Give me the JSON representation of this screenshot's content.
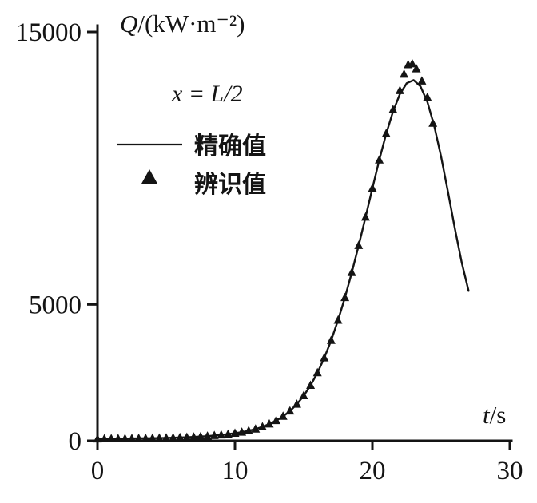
{
  "chart_data": {
    "type": "line",
    "title": {
      "symbol": "Q",
      "units": "/(kW·m⁻²)"
    },
    "xlabel": {
      "symbol": "t",
      "units": "/s"
    },
    "ylabel": "Q/(kW·m⁻²)",
    "annotation": "x = L/2",
    "xlim": [
      0,
      30
    ],
    "ylim": [
      0,
      15000
    ],
    "x_ticks": [
      0,
      10,
      20,
      30
    ],
    "y_ticks": [
      0,
      5000,
      15000
    ],
    "grid": false,
    "legend_position": "upper-left-inside",
    "ink_color": "#141414",
    "series": [
      {
        "name": "精确值",
        "type": "line",
        "points": [
          [
            0,
            70
          ],
          [
            1,
            75
          ],
          [
            2,
            80
          ],
          [
            3,
            88
          ],
          [
            4,
            95
          ],
          [
            5,
            105
          ],
          [
            6,
            120
          ],
          [
            7,
            140
          ],
          [
            8,
            170
          ],
          [
            9,
            215
          ],
          [
            10,
            275
          ],
          [
            10.5,
            315
          ],
          [
            11,
            365
          ],
          [
            11.5,
            430
          ],
          [
            12,
            510
          ],
          [
            12.5,
            615
          ],
          [
            13,
            740
          ],
          [
            13.5,
            895
          ],
          [
            14,
            1090
          ],
          [
            14.5,
            1340
          ],
          [
            15,
            1650
          ],
          [
            15.5,
            2030
          ],
          [
            16,
            2490
          ],
          [
            16.5,
            3040
          ],
          [
            17,
            3680
          ],
          [
            17.5,
            4420
          ],
          [
            18,
            5250
          ],
          [
            18.5,
            6170
          ],
          [
            19,
            7160
          ],
          [
            19.5,
            8200
          ],
          [
            20,
            9260
          ],
          [
            20.5,
            10300
          ],
          [
            21,
            11260
          ],
          [
            21.5,
            12080
          ],
          [
            22,
            12720
          ],
          [
            22.5,
            13120
          ],
          [
            23,
            13230
          ],
          [
            23.5,
            13000
          ],
          [
            24,
            12430
          ],
          [
            24.5,
            11550
          ],
          [
            25,
            10420
          ],
          [
            25.5,
            9130
          ],
          [
            26,
            7790
          ],
          [
            26.5,
            6540
          ],
          [
            27,
            5500
          ]
        ]
      },
      {
        "name": "辨识值",
        "type": "scatter",
        "marker": "triangle",
        "points": [
          [
            0,
            70
          ],
          [
            0.5,
            72
          ],
          [
            1,
            75
          ],
          [
            1.5,
            78
          ],
          [
            2,
            82
          ],
          [
            2.5,
            85
          ],
          [
            3,
            88
          ],
          [
            3.5,
            92
          ],
          [
            4,
            96
          ],
          [
            4.5,
            100
          ],
          [
            5,
            106
          ],
          [
            5.5,
            112
          ],
          [
            6,
            120
          ],
          [
            6.5,
            130
          ],
          [
            7,
            142
          ],
          [
            7.5,
            155
          ],
          [
            8,
            172
          ],
          [
            8.5,
            192
          ],
          [
            9,
            216
          ],
          [
            9.5,
            244
          ],
          [
            10,
            278
          ],
          [
            10.5,
            318
          ],
          [
            11,
            368
          ],
          [
            11.5,
            432
          ],
          [
            12,
            512
          ],
          [
            12.5,
            618
          ],
          [
            13,
            745
          ],
          [
            13.5,
            900
          ],
          [
            14,
            1095
          ],
          [
            14.5,
            1345
          ],
          [
            15,
            1655
          ],
          [
            15.5,
            2035
          ],
          [
            16,
            2495
          ],
          [
            16.5,
            3045
          ],
          [
            17,
            3685
          ],
          [
            17.5,
            4425
          ],
          [
            18,
            5255
          ],
          [
            18.5,
            6175
          ],
          [
            19,
            7165
          ],
          [
            19.5,
            8205
          ],
          [
            20,
            9265
          ],
          [
            20.5,
            10305
          ],
          [
            21,
            11270
          ],
          [
            21.5,
            12150
          ],
          [
            22,
            12850
          ],
          [
            22.3,
            13450
          ],
          [
            22.6,
            13800
          ],
          [
            22.9,
            13830
          ],
          [
            23.2,
            13650
          ],
          [
            23.6,
            13200
          ],
          [
            24,
            12600
          ],
          [
            24.4,
            11650
          ]
        ]
      }
    ]
  }
}
